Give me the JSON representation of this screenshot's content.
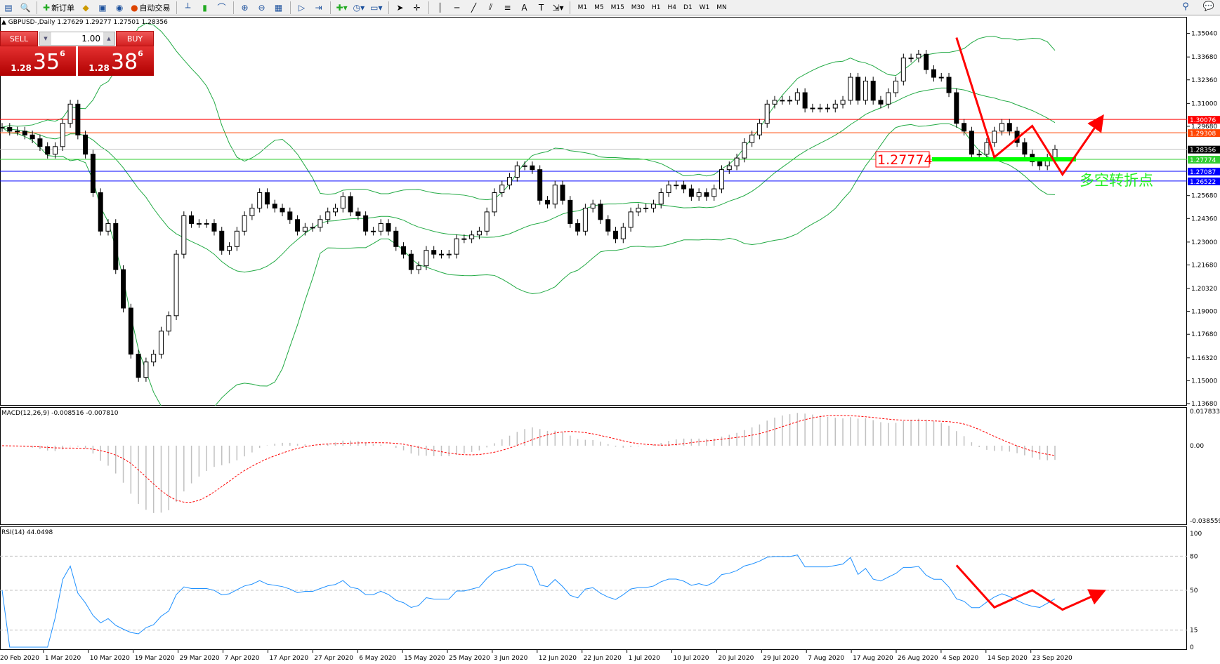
{
  "toolbar": {
    "new_order": "新订单",
    "auto_trade": "自动交易",
    "timeframes": [
      "M1",
      "M5",
      "M15",
      "M30",
      "H1",
      "H4",
      "D1",
      "W1",
      "MN"
    ]
  },
  "header": {
    "text": "GBPUSD-,Daily  1.27629 1.29277 1.27501 1.28356"
  },
  "trade_panel": {
    "sell_label": "SELL",
    "buy_label": "BUY",
    "lot": "1.00",
    "sell_prefix": "1.28",
    "sell_big": "35",
    "sell_sup": "6",
    "buy_prefix": "1.28",
    "buy_big": "38",
    "buy_sup": "6"
  },
  "colors": {
    "bull": "#ffffff",
    "bear": "#000000",
    "bands": "#22aa44",
    "macd_signal": "#ff0000",
    "macd_hist": "#c0c0c0",
    "rsi": "#1e90ff",
    "arrow": "#ff0000"
  },
  "chart_data": [
    {
      "type": "candlestick",
      "symbol": "GBPUSD-",
      "timeframe": "Daily",
      "indicator": "Bollinger Bands",
      "ylim": [
        1.1368,
        1.3504
      ],
      "yticks": [
        "1.35040",
        "1.33680",
        "1.32360",
        "1.31000",
        "1.29680",
        "1.25680",
        "1.24360",
        "1.23000",
        "1.21680",
        "1.20320",
        "1.19000",
        "1.17680",
        "1.16320",
        "1.15000",
        "1.13680"
      ],
      "xticks": [
        "20 Feb 2020",
        "1 Mar 2020",
        "10 Mar 2020",
        "19 Mar 2020",
        "29 Mar 2020",
        "7 Apr 2020",
        "17 Apr 2020",
        "27 Apr 2020",
        "6 May 2020",
        "15 May 2020",
        "25 May 2020",
        "3 Jun 2020",
        "12 Jun 2020",
        "22 Jun 2020",
        "1 Jul 2020",
        "10 Jul 2020",
        "20 Jul 2020",
        "29 Jul 2020",
        "7 Aug 2020",
        "17 Aug 2020",
        "26 Aug 2020",
        "4 Sep 2020",
        "14 Sep 2020",
        "23 Sep 2020"
      ],
      "close": [
        1.2962,
        1.294,
        1.294,
        1.2918,
        1.2896,
        1.2851,
        1.2807,
        1.2851,
        1.2985,
        1.3096,
        1.2918,
        1.2807,
        1.2585,
        1.2363,
        1.2407,
        1.2141,
        1.1919,
        1.1653,
        1.1519,
        1.1608,
        1.1653,
        1.1786,
        1.1875,
        1.223,
        1.2452,
        1.2407,
        1.2407,
        1.2407,
        1.2363,
        1.2252,
        1.2274,
        1.2363,
        1.2452,
        1.2496,
        1.2585,
        1.2519,
        1.2496,
        1.2474,
        1.243,
        1.2363,
        1.2385,
        1.2385,
        1.243,
        1.2474,
        1.2496,
        1.2563,
        1.2474,
        1.2452,
        1.2363,
        1.2363,
        1.2407,
        1.2363,
        1.2274,
        1.223,
        1.2141,
        1.2163,
        1.2252,
        1.223,
        1.223,
        1.223,
        1.2319,
        1.2319,
        1.2341,
        1.2363,
        1.2474,
        1.2585,
        1.2629,
        1.2674,
        1.274,
        1.274,
        1.2718,
        1.2541,
        1.2519,
        1.2629,
        1.2541,
        1.2407,
        1.2363,
        1.2496,
        1.2519,
        1.243,
        1.2363,
        1.2319,
        1.2385,
        1.2474,
        1.2496,
        1.2496,
        1.2519,
        1.2585,
        1.2629,
        1.2629,
        1.2607,
        1.2563,
        1.2585,
        1.2563,
        1.2607,
        1.2718,
        1.274,
        1.2785,
        1.2874,
        1.2918,
        1.2985,
        1.3096,
        1.3118,
        1.3118,
        1.3118,
        1.3162,
        1.3073,
        1.3073,
        1.3073,
        1.3073,
        1.3096,
        1.3118,
        1.3251,
        1.3118,
        1.3229,
        1.3118,
        1.3096,
        1.3162,
        1.3229,
        1.3362,
        1.3362,
        1.3384,
        1.3295,
        1.3251,
        1.3251,
        1.3162,
        1.2985,
        1.294,
        1.2807,
        1.2807,
        1.2874,
        1.294,
        1.2985,
        1.294,
        1.2874,
        1.2807,
        1.2763,
        1.274,
        1.2785,
        1.28356
      ],
      "hlines": [
        {
          "price": 1.30076,
          "label": "1.30076",
          "color": "#ff0000"
        },
        {
          "price": 1.29308,
          "label": "1.29308",
          "color": "#ff4500"
        },
        {
          "price": 1.28356,
          "label": "1.28356",
          "color": "#c0c0c0",
          "tag": "#000000"
        },
        {
          "price": 1.27774,
          "label": "1.27774",
          "color": "#32cd32"
        },
        {
          "price": 1.27087,
          "label": "1.27087",
          "color": "#0000ff"
        },
        {
          "price": 1.26522,
          "label": "1.26522",
          "color": "#0000ff"
        }
      ],
      "annotations": {
        "level_label": "1.27774",
        "turning_point": "多空转折点",
        "arrow_path": [
          [
            126,
            1.348
          ],
          [
            131,
            1.279
          ],
          [
            136,
            1.297
          ],
          [
            140,
            1.269
          ],
          [
            145,
            1.3007
          ]
        ]
      }
    },
    {
      "type": "line",
      "indicator": "MACD",
      "title": "MACD(12,26,9) -0.008516 -0.007810",
      "ylim": [
        -0.038559,
        0.017833
      ],
      "yticks": [
        "0.017833",
        "0.00",
        "-0.038559"
      ]
    },
    {
      "type": "line",
      "indicator": "RSI",
      "title": "RSI(14) 44.0498",
      "ylim": [
        0,
        100
      ],
      "levels": [
        15,
        50,
        80
      ],
      "yticks": [
        "100",
        "80",
        "50",
        "15",
        "0"
      ],
      "annotations": {
        "arrow_path": [
          [
            126,
            72
          ],
          [
            131,
            35
          ],
          [
            136,
            50
          ],
          [
            140,
            33
          ],
          [
            145,
            48
          ]
        ]
      }
    }
  ]
}
